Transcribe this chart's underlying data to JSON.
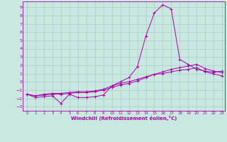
{
  "xlabel": "Windchill (Refroidissement éolien,°C)",
  "xlim_min": -0.5,
  "xlim_max": 23.3,
  "ylim_min": -3.5,
  "ylim_max": 9.7,
  "yticks": [
    -3,
    -2,
    -1,
    0,
    1,
    2,
    3,
    4,
    5,
    6,
    7,
    8,
    9
  ],
  "xticks": [
    0,
    1,
    2,
    3,
    4,
    5,
    6,
    7,
    8,
    9,
    10,
    11,
    12,
    13,
    14,
    15,
    16,
    17,
    18,
    19,
    20,
    21,
    22,
    23
  ],
  "background_color": "#c8e8e0",
  "line_color": "#aa00aa",
  "grid_color": "#aacccc",
  "series1_x": [
    0,
    1,
    2,
    3,
    4,
    5,
    6,
    7,
    8,
    9,
    10,
    11,
    12,
    13,
    14,
    15,
    16,
    17,
    18,
    19,
    20,
    21,
    22,
    23
  ],
  "series1_y": [
    -1.5,
    -1.9,
    -1.8,
    -1.7,
    -2.6,
    -1.5,
    -1.9,
    -1.9,
    -1.8,
    -1.6,
    -0.5,
    0.0,
    0.5,
    1.8,
    5.5,
    8.3,
    9.3,
    8.8,
    2.7,
    2.1,
    1.5,
    1.3,
    1.15,
    1.3
  ],
  "series2_x": [
    0,
    1,
    2,
    3,
    4,
    5,
    6,
    7,
    8,
    9,
    10,
    11,
    12,
    13,
    14,
    15,
    16,
    17,
    18,
    19,
    20,
    21,
    22,
    23
  ],
  "series2_y": [
    -1.5,
    -1.7,
    -1.6,
    -1.5,
    -1.5,
    -1.4,
    -1.3,
    -1.3,
    -1.2,
    -1.0,
    -0.7,
    -0.4,
    -0.2,
    0.1,
    0.5,
    0.9,
    1.2,
    1.5,
    1.7,
    1.9,
    2.1,
    1.6,
    1.3,
    1.1
  ],
  "series3_x": [
    0,
    1,
    2,
    3,
    4,
    5,
    6,
    7,
    8,
    9,
    10,
    11,
    12,
    13,
    14,
    15,
    16,
    17,
    18,
    19,
    20,
    21,
    22,
    23
  ],
  "series3_y": [
    -1.5,
    -1.7,
    -1.5,
    -1.4,
    -1.4,
    -1.3,
    -1.2,
    -1.2,
    -1.1,
    -0.9,
    -0.5,
    -0.2,
    0.0,
    0.3,
    0.6,
    0.9,
    1.0,
    1.2,
    1.4,
    1.5,
    1.7,
    1.2,
    0.95,
    0.7
  ]
}
